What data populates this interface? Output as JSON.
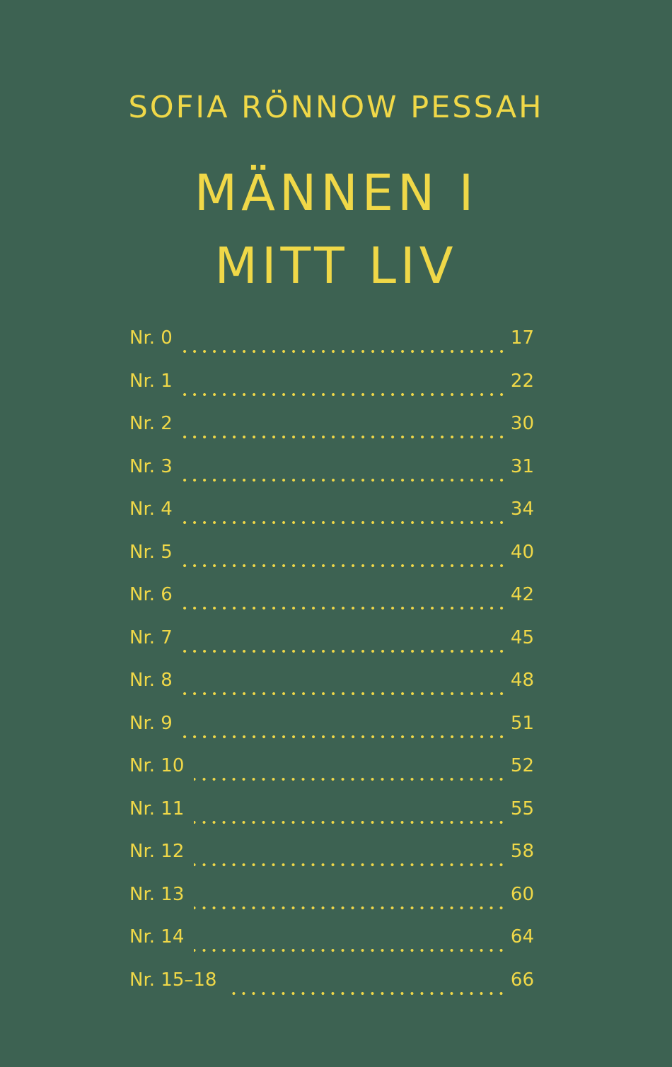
{
  "colors": {
    "background": "#3d6252",
    "text": "#f0d848"
  },
  "author": "SOFIA RÖNNOW PESSAH",
  "title": {
    "line1": "MÄNNEN I",
    "line2": "MITT LIV"
  },
  "toc": [
    {
      "label": "Nr. 0",
      "page": "17"
    },
    {
      "label": "Nr. 1",
      "page": "22"
    },
    {
      "label": "Nr. 2",
      "page": "30"
    },
    {
      "label": "Nr. 3",
      "page": "31"
    },
    {
      "label": "Nr. 4",
      "page": "34"
    },
    {
      "label": "Nr. 5",
      "page": "40"
    },
    {
      "label": "Nr. 6",
      "page": "42"
    },
    {
      "label": "Nr. 7",
      "page": "45"
    },
    {
      "label": "Nr. 8",
      "page": "48"
    },
    {
      "label": "Nr. 9",
      "page": "51"
    },
    {
      "label": "Nr. 10",
      "page": "52"
    },
    {
      "label": "Nr. 11",
      "page": "55"
    },
    {
      "label": "Nr. 12",
      "page": "58"
    },
    {
      "label": "Nr. 13",
      "page": "60"
    },
    {
      "label": "Nr. 14",
      "page": "64"
    },
    {
      "label": "Nr. 15–18",
      "page": "66"
    }
  ]
}
